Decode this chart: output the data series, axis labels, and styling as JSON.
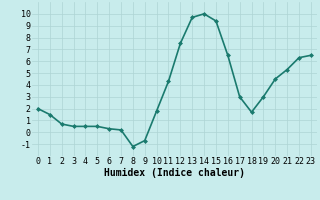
{
  "x": [
    0,
    1,
    2,
    3,
    4,
    5,
    6,
    7,
    8,
    9,
    10,
    11,
    12,
    13,
    14,
    15,
    16,
    17,
    18,
    19,
    20,
    21,
    22,
    23
  ],
  "y": [
    2,
    1.5,
    0.7,
    0.5,
    0.5,
    0.5,
    0.3,
    0.2,
    -1.2,
    -0.7,
    1.8,
    4.3,
    7.5,
    9.7,
    10.0,
    9.4,
    6.5,
    3.0,
    1.7,
    3.0,
    4.5,
    5.3,
    6.3,
    6.5
  ],
  "line_color": "#1a7a6e",
  "marker": "D",
  "marker_size": 2,
  "bg_color": "#c8ecec",
  "grid_color": "#aed4d4",
  "xlabel": "Humidex (Indice chaleur)",
  "ylabel": "",
  "xlim": [
    -0.5,
    23.5
  ],
  "ylim": [
    -2,
    11
  ],
  "yticks": [
    -1,
    0,
    1,
    2,
    3,
    4,
    5,
    6,
    7,
    8,
    9,
    10
  ],
  "xticks": [
    0,
    1,
    2,
    3,
    4,
    5,
    6,
    7,
    8,
    9,
    10,
    11,
    12,
    13,
    14,
    15,
    16,
    17,
    18,
    19,
    20,
    21,
    22,
    23
  ],
  "xlabel_fontsize": 7,
  "tick_fontsize": 6,
  "line_width": 1.2
}
